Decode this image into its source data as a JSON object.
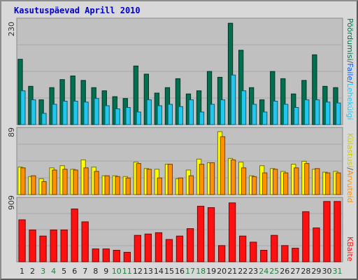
{
  "title": "Kasutuspäevad Aprill 2010",
  "colors": {
    "visits": "#007050",
    "pages": "#00c8f0",
    "files": "#005850",
    "hits": "#006048",
    "sites": "#ffff00",
    "kbytes": "#ff0000",
    "title": "#0000c8",
    "background": "#c0c0c0"
  },
  "legend_top": {
    "hits": "Pöördumisi",
    "sep1": "/",
    "files": "Faile",
    "sep2": "/",
    "pages": "Lehekülgi"
  },
  "legend_mid": {
    "visits": "Kül",
    "visits_suffix": "astusi",
    "sep": "/",
    "sites": "Arvuteid"
  },
  "legend_bottom": {
    "kbytes": "KBaite"
  },
  "chart_data": [
    {
      "type": "bar",
      "panel": "top",
      "title": "",
      "ymax_label": "230",
      "ylim": [
        0,
        230
      ],
      "categories": [
        "1",
        "2",
        "3",
        "4",
        "5",
        "6",
        "7",
        "8",
        "9",
        "10",
        "11",
        "12",
        "13",
        "14",
        "15",
        "16",
        "17",
        "18",
        "19",
        "20",
        "21",
        "22",
        "23",
        "24",
        "25",
        "26",
        "27",
        "28",
        "29",
        "30",
        "31"
      ],
      "series": [
        {
          "name": "Pöördumisi",
          "color": "#007050",
          "values": [
            145,
            85,
            55,
            82,
            100,
            108,
            98,
            82,
            75,
            62,
            58,
            130,
            112,
            70,
            82,
            102,
            68,
            75,
            118,
            105,
            225,
            165,
            82,
            55,
            118,
            102,
            68,
            98,
            155,
            85,
            82
          ]
        },
        {
          "name": "Lehekülgi",
          "color": "#20c8f0",
          "values": [
            75,
            55,
            25,
            45,
            52,
            52,
            50,
            58,
            42,
            35,
            38,
            28,
            55,
            42,
            45,
            40,
            55,
            28,
            45,
            55,
            110,
            75,
            45,
            28,
            52,
            45,
            38,
            55,
            55,
            50,
            48
          ]
        }
      ]
    },
    {
      "type": "bar",
      "panel": "middle",
      "title": "",
      "ymax_label": "89",
      "ylim": [
        0,
        89
      ],
      "categories": [
        "1",
        "2",
        "3",
        "4",
        "5",
        "6",
        "7",
        "8",
        "9",
        "10",
        "11",
        "12",
        "13",
        "14",
        "15",
        "16",
        "17",
        "18",
        "19",
        "20",
        "21",
        "22",
        "23",
        "24",
        "25",
        "26",
        "27",
        "28",
        "29",
        "30",
        "31"
      ],
      "series": [
        {
          "name": "Külastusi",
          "color": "#ffff00",
          "values": [
            38,
            25,
            22,
            37,
            40,
            35,
            48,
            38,
            26,
            26,
            25,
            45,
            36,
            35,
            42,
            22,
            34,
            49,
            44,
            87,
            50,
            45,
            26,
            40,
            36,
            32,
            42,
            46,
            35,
            31,
            32
          ]
        },
        {
          "name": "Arvuteid",
          "color": "#ff9000",
          "values": [
            37,
            26,
            18,
            34,
            35,
            34,
            37,
            32,
            26,
            25,
            23,
            43,
            35,
            23,
            42,
            23,
            26,
            42,
            44,
            80,
            48,
            37,
            25,
            30,
            35,
            30,
            37,
            43,
            36,
            30,
            30
          ]
        }
      ]
    },
    {
      "type": "bar",
      "panel": "bottom",
      "title": "",
      "ymax_label": "909",
      "ylim": [
        0,
        909
      ],
      "categories": [
        "1",
        "2",
        "3",
        "4",
        "5",
        "6",
        "7",
        "8",
        "9",
        "10",
        "11",
        "12",
        "13",
        "14",
        "15",
        "16",
        "17",
        "18",
        "19",
        "20",
        "21",
        "22",
        "23",
        "24",
        "25",
        "26",
        "27",
        "28",
        "29",
        "30",
        "31"
      ],
      "series": [
        {
          "name": "KBaite",
          "color": "#ff1010",
          "values": [
            620,
            470,
            380,
            470,
            470,
            780,
            590,
            190,
            190,
            170,
            140,
            390,
            410,
            430,
            330,
            380,
            490,
            820,
            800,
            240,
            870,
            380,
            290,
            170,
            390,
            240,
            200,
            740,
            500,
            890,
            890
          ]
        }
      ]
    }
  ],
  "day_labels": [
    {
      "text": "1",
      "color": "#222222"
    },
    {
      "text": "2",
      "color": "#222222"
    },
    {
      "text": "3",
      "color": "#208040"
    },
    {
      "text": "4",
      "color": "#208040"
    },
    {
      "text": "5",
      "color": "#222222"
    },
    {
      "text": "6",
      "color": "#222222"
    },
    {
      "text": "7",
      "color": "#222222"
    },
    {
      "text": "8",
      "color": "#222222"
    },
    {
      "text": "9",
      "color": "#222222"
    },
    {
      "text": "10",
      "color": "#208040"
    },
    {
      "text": "11",
      "color": "#208040"
    },
    {
      "text": "12",
      "color": "#222222"
    },
    {
      "text": "13",
      "color": "#222222"
    },
    {
      "text": "14",
      "color": "#222222"
    },
    {
      "text": "15",
      "color": "#222222"
    },
    {
      "text": "16",
      "color": "#222222"
    },
    {
      "text": "17",
      "color": "#208040"
    },
    {
      "text": "18",
      "color": "#208040"
    },
    {
      "text": "19",
      "color": "#222222"
    },
    {
      "text": "20",
      "color": "#222222"
    },
    {
      "text": "21",
      "color": "#222222"
    },
    {
      "text": "22",
      "color": "#222222"
    },
    {
      "text": "23",
      "color": "#222222"
    },
    {
      "text": "24",
      "color": "#208040"
    },
    {
      "text": "25",
      "color": "#208040"
    },
    {
      "text": "26",
      "color": "#222222"
    },
    {
      "text": "27",
      "color": "#222222"
    },
    {
      "text": "28",
      "color": "#222222"
    },
    {
      "text": "29",
      "color": "#222222"
    },
    {
      "text": "30",
      "color": "#222222"
    },
    {
      "text": "31",
      "color": "#208040"
    }
  ]
}
